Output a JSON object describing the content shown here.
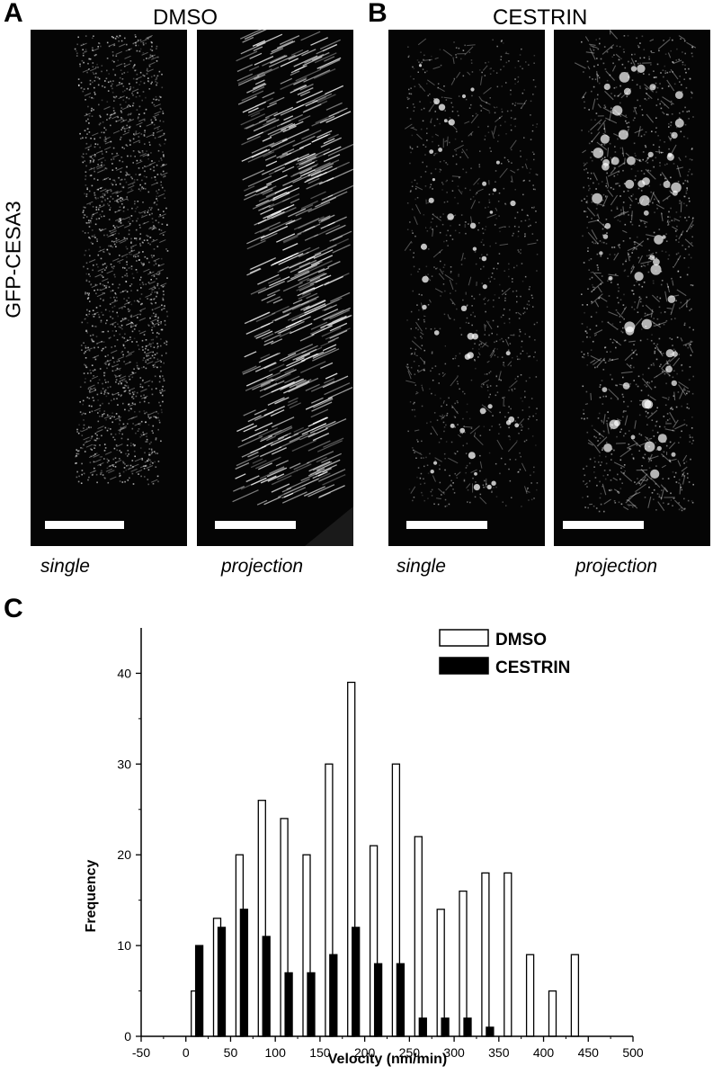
{
  "panels": {
    "a": {
      "letter": "A",
      "condition": "DMSO",
      "left_caption": "single",
      "right_caption": "projection"
    },
    "b": {
      "letter": "B",
      "condition": "CESTRIN",
      "left_caption": "single",
      "right_caption": "projection"
    },
    "c": {
      "letter": "C"
    }
  },
  "row_label": "GFP-CESA3",
  "colors": {
    "micro_bg": "#050505",
    "signal": "#ffffff",
    "bar_dmso": "#ffffff",
    "bar_cestrin": "#000000"
  },
  "chart_data": {
    "type": "bar",
    "xlabel": "Velocity (nm/min)",
    "ylabel": "Frequency",
    "xlim": [
      -50,
      500
    ],
    "ylim": [
      0,
      45
    ],
    "xticks": [
      -50,
      0,
      50,
      100,
      150,
      200,
      250,
      300,
      350,
      400,
      450,
      500
    ],
    "yticks": [
      0,
      10,
      20,
      30,
      40
    ],
    "legend_position": "top-right",
    "grid": false,
    "series": [
      {
        "name": "DMSO",
        "x": [
          10,
          35,
          60,
          85,
          110,
          135,
          160,
          185,
          210,
          235,
          260,
          285,
          310,
          335,
          360,
          385,
          410,
          435
        ],
        "values": [
          5,
          13,
          20,
          26,
          24,
          20,
          30,
          39,
          21,
          30,
          22,
          14,
          16,
          18,
          18,
          9,
          5,
          9
        ]
      },
      {
        "name": "CESTRIN",
        "x": [
          15,
          40,
          65,
          90,
          115,
          140,
          165,
          190,
          215,
          240,
          265,
          290,
          315,
          340
        ],
        "values": [
          10,
          12,
          14,
          11,
          7,
          7,
          9,
          12,
          8,
          8,
          2,
          2,
          2,
          1
        ]
      }
    ]
  }
}
